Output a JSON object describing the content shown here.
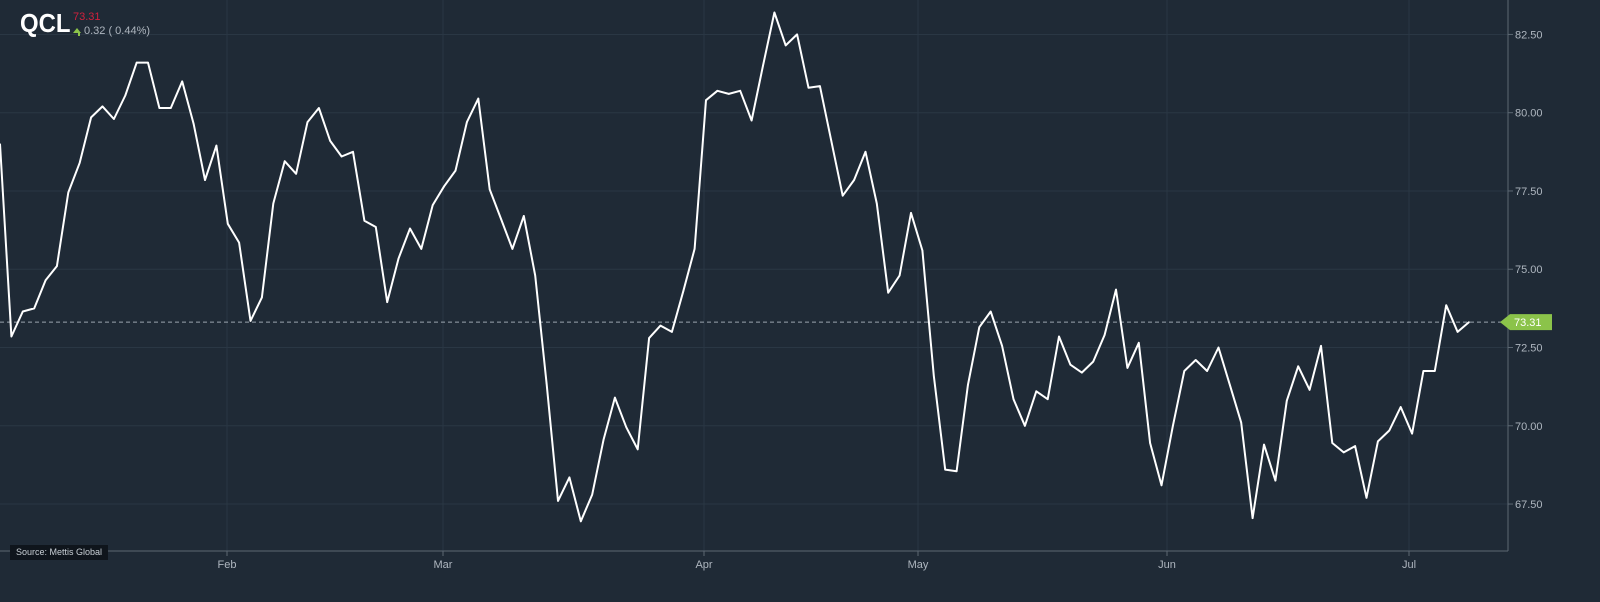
{
  "ticker": {
    "symbol": "QCL",
    "price": "73.31",
    "change": "0.32 ( 0.44%)",
    "direction_icon": "up-arrow-icon"
  },
  "source": "Source: Mettis Global",
  "colors": {
    "background": "#1f2a36",
    "grid": "#2a3744",
    "line": "#ffffff",
    "last_price_tag": "#8bc34a",
    "price_text": "#d0213d",
    "up": "#8bc34a"
  },
  "chart_data": {
    "type": "line",
    "title": "",
    "xlabel": "",
    "ylabel": "",
    "x_tick_labels": [
      "Feb",
      "Mar",
      "Apr",
      "May",
      "Jun",
      "Jul"
    ],
    "y_tick_labels": [
      "67.50",
      "70.00",
      "72.50",
      "75.00",
      "77.50",
      "80.00",
      "82.50"
    ],
    "y_ticks": [
      67.5,
      70.0,
      72.5,
      75.0,
      77.5,
      80.0,
      82.5
    ],
    "ylim": [
      66.0,
      83.6
    ],
    "y_axis_position": "right",
    "grid": true,
    "last_value": 73.31,
    "last_value_label": "73.31",
    "series": [
      {
        "values": [
          79.0,
          72.85,
          73.65,
          73.75,
          74.65,
          75.1,
          77.45,
          78.4,
          79.85,
          80.2,
          79.8,
          80.55,
          81.6,
          81.6,
          80.15,
          80.15,
          81.0,
          79.65,
          77.85,
          78.95,
          76.45,
          75.85,
          73.35,
          74.1,
          77.1,
          78.45,
          78.05,
          79.7,
          80.15,
          79.1,
          78.6,
          78.75,
          76.55,
          76.35,
          73.95,
          75.35,
          76.3,
          75.65,
          77.05,
          77.65,
          78.15,
          79.7,
          80.45,
          77.55,
          76.6,
          75.65,
          76.7,
          74.8,
          71.35,
          67.6,
          68.35,
          66.95,
          67.8,
          69.55,
          70.9,
          69.95,
          69.25,
          72.8,
          73.2,
          73.0,
          74.3,
          75.65,
          80.4,
          80.7,
          80.6,
          80.7,
          79.75,
          81.5,
          83.2,
          82.15,
          82.5,
          80.8,
          80.85,
          79.1,
          77.35,
          77.85,
          78.75,
          77.1,
          74.25,
          74.8,
          76.8,
          75.6,
          71.6,
          68.6,
          68.55,
          71.3,
          73.15,
          73.65,
          72.55,
          70.85,
          70.0,
          71.1,
          70.85,
          72.85,
          71.95,
          71.7,
          72.05,
          72.9,
          74.35,
          71.85,
          72.65,
          69.45,
          68.1,
          70.0,
          71.75,
          72.1,
          71.75,
          72.5,
          71.3,
          70.1,
          67.05,
          69.4,
          68.25,
          70.8,
          71.9,
          71.15,
          72.55,
          69.45,
          69.15,
          69.35,
          67.7,
          69.5,
          69.85,
          70.6,
          69.75,
          71.75,
          71.75,
          73.85,
          73.0,
          73.31
        ]
      }
    ]
  }
}
